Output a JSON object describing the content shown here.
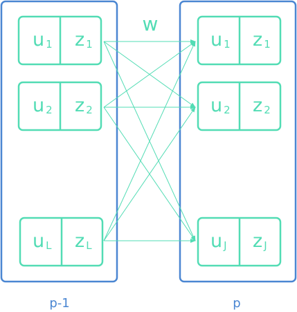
{
  "weight_label": "w",
  "layers": [
    {
      "caption": "p-1",
      "nodes": [
        {
          "u": "u",
          "u_sub": "1",
          "z": "z",
          "z_sub": "1"
        },
        {
          "u": "u",
          "u_sub": "2",
          "z": "z",
          "z_sub": "2"
        },
        {
          "u": "u",
          "u_sub": "L",
          "z": "z",
          "z_sub": "L"
        }
      ]
    },
    {
      "caption": "p",
      "nodes": [
        {
          "u": "u",
          "u_sub": "1",
          "z": "z",
          "z_sub": "1"
        },
        {
          "u": "u",
          "u_sub": "2",
          "z": "z",
          "z_sub": "2"
        },
        {
          "u": "u",
          "u_sub": "J",
          "z": "z",
          "z_sub": "J"
        }
      ]
    }
  ],
  "colors": {
    "layer_border": "#4a86d2",
    "node_and_edges": "#52dcb4"
  }
}
